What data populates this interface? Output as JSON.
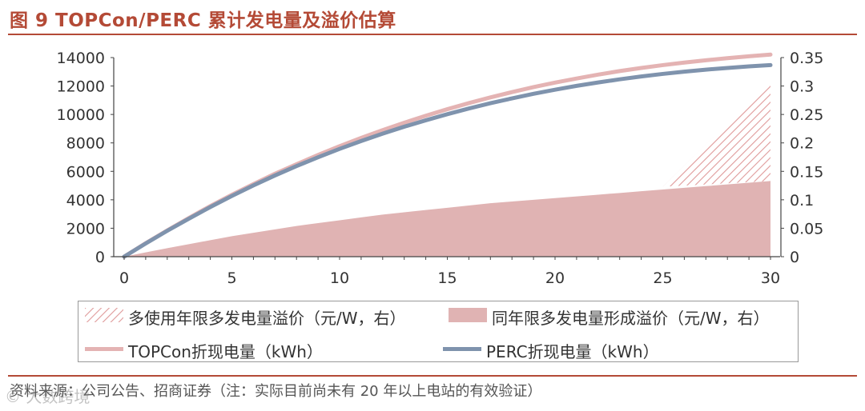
{
  "header": {
    "title": "图 9 TOPCon/PERC 累计发电量及溢价估算"
  },
  "source": {
    "text": "资料来源：公司公告、招商证券（注：实际目前尚未有 20 年以上电站的有效验证）"
  },
  "watermark": {
    "text": "© 大数跨境"
  },
  "colors": {
    "title": "#b44a36",
    "topcon": "#e4b3b3",
    "perc": "#7f93ad",
    "premium_fill": "#e0b3b3",
    "hatch": "#df9a9a",
    "axis_text": "#333333"
  },
  "chart_data": {
    "type": "line",
    "x": [
      0,
      1,
      2,
      3,
      4,
      5,
      6,
      7,
      8,
      9,
      10,
      11,
      12,
      13,
      14,
      15,
      16,
      17,
      18,
      19,
      20,
      21,
      22,
      23,
      24,
      25,
      26,
      27,
      28,
      29,
      30
    ],
    "xlim": [
      0,
      30
    ],
    "xticks": [
      "0",
      "5",
      "10",
      "15",
      "20",
      "25",
      "30"
    ],
    "ylim": [
      0,
      14000
    ],
    "yticks": [
      "0",
      "2000",
      "4000",
      "6000",
      "8000",
      "10000",
      "12000",
      "14000"
    ],
    "y2lim": [
      0,
      0.35
    ],
    "y2ticks": [
      "0",
      "0.05",
      "0.1",
      "0.15",
      "0.2",
      "0.25",
      "0.3",
      "0.35"
    ],
    "series": [
      {
        "name": "TOPCon折现电量（kWh）",
        "axis": "left",
        "style": "line",
        "color": "#e4b3b3",
        "values": [
          0,
          950,
          1850,
          2720,
          3560,
          4350,
          5100,
          5830,
          6500,
          7150,
          7770,
          8350,
          8900,
          9420,
          9910,
          10370,
          10800,
          11200,
          11570,
          11920,
          12240,
          12530,
          12800,
          13050,
          13270,
          13470,
          13650,
          13810,
          13960,
          14090,
          14210
        ]
      },
      {
        "name": "PERC折现电量（kWh）",
        "axis": "left",
        "style": "line",
        "color": "#7f93ad",
        "values": [
          0,
          930,
          1820,
          2670,
          3490,
          4270,
          5010,
          5710,
          6370,
          6990,
          7580,
          8130,
          8650,
          9140,
          9590,
          10020,
          10420,
          10790,
          11130,
          11450,
          11740,
          12010,
          12250,
          12470,
          12670,
          12850,
          13010,
          13150,
          13270,
          13380,
          13470
        ]
      },
      {
        "name": "同年限多发电量形成溢价（元/W，右）",
        "axis": "right",
        "style": "area",
        "color": "#e0b3b3",
        "values": [
          0,
          0.0075,
          0.015,
          0.022,
          0.029,
          0.036,
          0.042,
          0.048,
          0.054,
          0.059,
          0.064,
          0.069,
          0.074,
          0.078,
          0.082,
          0.086,
          0.09,
          0.094,
          0.097,
          0.1,
          0.103,
          0.106,
          0.109,
          0.112,
          0.115,
          0.118,
          0.121,
          0.124,
          0.127,
          0.13,
          0.133
        ]
      },
      {
        "name": "多使用年限多发电量溢价（元/W，右）",
        "axis": "right",
        "style": "hatched-area",
        "x_range": [
          25,
          30
        ],
        "bottom": [
          0.123,
          0.133
        ],
        "top": [
          0.123,
          0.31
        ]
      }
    ],
    "legend": {
      "position": "bottom",
      "items": [
        "多使用年限多发电量溢价（元/W，右）",
        "同年限多发电量形成溢价（元/W，右）",
        "TOPCon折现电量（kWh）",
        "PERC折现电量（kWh）"
      ]
    }
  }
}
